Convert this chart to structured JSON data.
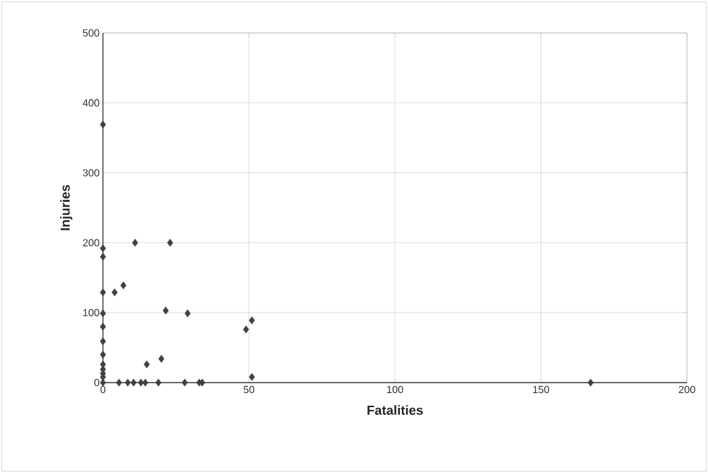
{
  "chart_data": {
    "type": "scatter",
    "xlabel": "Fatalities",
    "ylabel": "Injuries",
    "series": [
      {
        "color": "#404040",
        "x": [
          0,
          0,
          0,
          0,
          0,
          0,
          0,
          0,
          0,
          0,
          0,
          0,
          0,
          11,
          23,
          4,
          7,
          21.5,
          29,
          49,
          51,
          51,
          15,
          20,
          5.5,
          8.5,
          10.5,
          13,
          14.5,
          19,
          28,
          33,
          34,
          167
        ],
        "values": [
          369,
          192,
          180,
          129,
          99,
          80,
          59,
          40,
          26,
          19,
          13,
          8,
          0,
          200,
          200,
          129,
          139,
          103,
          99,
          76,
          89,
          8,
          26,
          34,
          0,
          0,
          0,
          0,
          0,
          0,
          0,
          0,
          0,
          0
        ]
      }
    ],
    "xlim": [
      0,
      200
    ],
    "ylim": [
      0,
      500
    ],
    "xticks": [
      0,
      50,
      100,
      150,
      200
    ],
    "yticks": [
      0,
      100,
      200,
      300,
      400,
      500
    ],
    "grid": true,
    "marker": "diamond"
  }
}
